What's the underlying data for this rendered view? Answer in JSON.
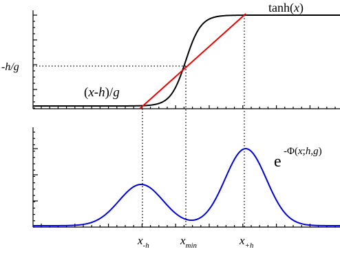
{
  "top_panel": {
    "curve_label": [
      "tanh(",
      "x",
      ")"
    ],
    "line_label": [
      "(",
      "x",
      "-",
      "h",
      ")/",
      "g"
    ],
    "y_label": [
      "-",
      "h",
      "/",
      "g"
    ]
  },
  "bottom_panel": {
    "curve_label": {
      "base": "e",
      "exponent": [
        "-Φ(",
        "x",
        ";",
        "h",
        ",",
        "g",
        ")"
      ]
    }
  },
  "x_labels": [
    {
      "main": "x",
      "sub": "-h"
    },
    {
      "main": "x",
      "sub": "min"
    },
    {
      "main": "x",
      "sub": "+h"
    }
  ]
}
